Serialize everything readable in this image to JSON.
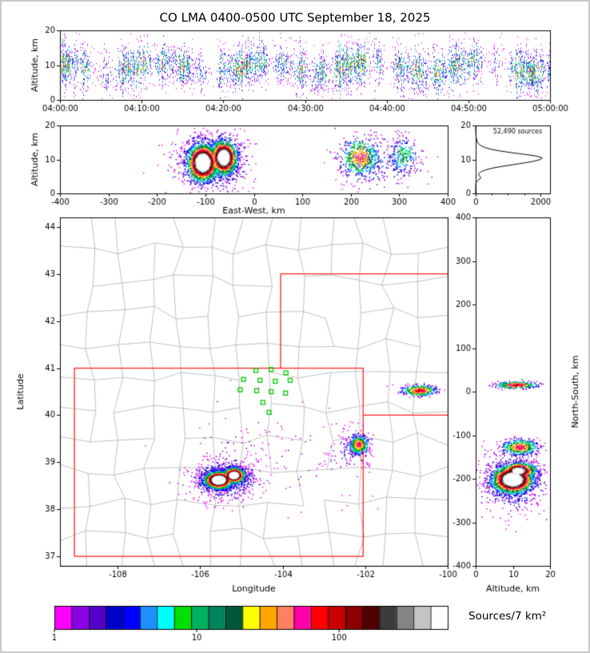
{
  "title": "CO LMA 0400-0500 UTC September 18, 2025",
  "colorbar": {
    "label": "Sources/7 km²",
    "tick_labels": [
      "1",
      "10",
      "100"
    ],
    "tick_positions": [
      0,
      0.362,
      0.724
    ],
    "colors": [
      "#FF00FF",
      "#8B00E6",
      "#5500C8",
      "#0000C8",
      "#0000FF",
      "#1E90FF",
      "#00FFFF",
      "#00E000",
      "#00B060",
      "#00845C",
      "#005838",
      "#FFFF00",
      "#FFA500",
      "#FF8060",
      "#FF00A8",
      "#FF0000",
      "#C80000",
      "#8B0000",
      "#500000",
      "#3C3C3C",
      "#848484",
      "#C4C4C4",
      "#FFFFFF"
    ]
  },
  "chart_data": [
    {
      "id": "time_height",
      "type": "scatter",
      "xlabel": "",
      "ylabel": "Altitude, km",
      "xlim": [
        0,
        3600
      ],
      "ylim": [
        0,
        20
      ],
      "xticks": [
        {
          "v": 0,
          "label": "04:00:00"
        },
        {
          "v": 600,
          "label": "04:10:00"
        },
        {
          "v": 1200,
          "label": "04:20:00"
        },
        {
          "v": 1800,
          "label": "04:30:00"
        },
        {
          "v": 2400,
          "label": "04:40:00"
        },
        {
          "v": 3000,
          "label": "04:50:00"
        },
        {
          "v": 3600,
          "label": "05:00:00"
        }
      ],
      "yticks": [
        {
          "v": 0,
          "label": "0"
        },
        {
          "v": 10,
          "label": "10"
        },
        {
          "v": 20,
          "label": "20"
        }
      ],
      "speckle": {
        "columns": 613,
        "alt_center": 9.5,
        "alt_var": 3.0,
        "max_per_col": 30,
        "seed": 11
      }
    },
    {
      "id": "ew_height",
      "type": "scatter",
      "xlabel": "East-West, km",
      "ylabel": "Altitude, km",
      "xlim": [
        -400,
        400
      ],
      "ylim": [
        0,
        20
      ],
      "xticks": [
        {
          "v": -400,
          "label": "-400"
        },
        {
          "v": -300,
          "label": "-300"
        },
        {
          "v": -200,
          "label": "-200"
        },
        {
          "v": -100,
          "label": "-100"
        },
        {
          "v": 0,
          "label": "0"
        },
        {
          "v": 100,
          "label": "100"
        },
        {
          "v": 200,
          "label": "200"
        },
        {
          "v": 300,
          "label": "300"
        },
        {
          "v": 400,
          "label": "400"
        }
      ],
      "yticks": [
        {
          "v": 0,
          "label": "0"
        },
        {
          "v": 10,
          "label": "10"
        },
        {
          "v": 20,
          "label": "20"
        }
      ],
      "clusters": [
        {
          "cx": -105,
          "cy": 9,
          "sx": 15,
          "sy": 2.6,
          "n": 2600,
          "core": 1.0
        },
        {
          "cx": -62,
          "cy": 10.5,
          "sx": 13,
          "sy": 2.4,
          "n": 2000,
          "core": 0.95
        },
        {
          "cx": -85,
          "cy": 9.5,
          "sx": 38,
          "sy": 4.5,
          "n": 800,
          "core": 0.22
        },
        {
          "cx": 220,
          "cy": 10.5,
          "sx": 20,
          "sy": 2.8,
          "n": 520,
          "core": 0.5
        },
        {
          "cx": 255,
          "cy": 9,
          "sx": 45,
          "sy": 4,
          "n": 260,
          "core": 0.15
        },
        {
          "cx": 308,
          "cy": 11,
          "sx": 16,
          "sy": 3,
          "n": 220,
          "core": 0.3
        }
      ],
      "seed": 22
    },
    {
      "id": "alt_histogram",
      "type": "line",
      "annotation": "52,490 sources",
      "xlabel": "",
      "ylabel": "",
      "xlim": [
        0,
        2300
      ],
      "ylim": [
        0,
        20
      ],
      "xticks": [
        {
          "v": 0,
          "label": "0"
        },
        {
          "v": 2000,
          "label": "2000"
        }
      ],
      "minor_xticks": [
        500,
        1000,
        1500
      ],
      "yticks": [
        {
          "v": 0,
          "label": "0"
        },
        {
          "v": 10,
          "label": "10"
        },
        {
          "v": 20,
          "label": "20"
        }
      ],
      "profile_alt_km": [
        0,
        2,
        3,
        3.5,
        4,
        4.5,
        5,
        5.5,
        6,
        6.5,
        7,
        7.5,
        8,
        8.5,
        9,
        9.5,
        10,
        10.5,
        11,
        11.5,
        12,
        12.5,
        13,
        13.5,
        14,
        14.5,
        15,
        16,
        17,
        18,
        19,
        20
      ],
      "profile_counts": [
        0,
        1,
        8,
        30,
        90,
        160,
        130,
        85,
        110,
        190,
        330,
        540,
        840,
        1180,
        1520,
        1810,
        2010,
        2060,
        1870,
        1520,
        1110,
        760,
        480,
        290,
        170,
        100,
        60,
        25,
        10,
        4,
        1,
        0
      ]
    },
    {
      "id": "map",
      "type": "scatter",
      "xlabel": "Longitude",
      "ylabel": "Latitude",
      "xlim": [
        -109.4,
        -100.0
      ],
      "ylim": [
        36.8,
        44.2
      ],
      "xticks": [
        {
          "v": -108,
          "label": "-108"
        },
        {
          "v": -106,
          "label": "-106"
        },
        {
          "v": -104,
          "label": "-104"
        },
        {
          "v": -102,
          "label": "-102"
        },
        {
          "v": -100,
          "label": "-100"
        }
      ],
      "yticks": [
        {
          "v": 37,
          "label": "37"
        },
        {
          "v": 38,
          "label": "38"
        },
        {
          "v": 39,
          "label": "39"
        },
        {
          "v": 40,
          "label": "40"
        },
        {
          "v": 41,
          "label": "41"
        },
        {
          "v": 42,
          "label": "42"
        },
        {
          "v": 43,
          "label": "43"
        },
        {
          "v": 44,
          "label": "44"
        }
      ],
      "county_color": "#B0B0B0",
      "county_grid": {
        "nx": 13,
        "ny": 11,
        "jitter": 0.42,
        "seed": 7
      },
      "state_border_color": "#FF1E1E",
      "state_segments": [
        [
          [
            -109.05,
            37
          ],
          [
            -102.05,
            37
          ],
          [
            -102.05,
            41
          ],
          [
            -109.05,
            41
          ],
          [
            -109.05,
            37
          ]
        ],
        [
          [
            -104.05,
            41
          ],
          [
            -104.05,
            43
          ]
        ],
        [
          [
            -104.05,
            43
          ],
          [
            -100.0,
            43
          ]
        ],
        [
          [
            -102.05,
            40
          ],
          [
            -100.0,
            40
          ]
        ]
      ],
      "stations": {
        "color": "#00CC00",
        "points": [
          [
            -104.65,
            40.95
          ],
          [
            -104.28,
            40.97
          ],
          [
            -103.92,
            40.9
          ],
          [
            -104.95,
            40.76
          ],
          [
            -104.55,
            40.74
          ],
          [
            -104.18,
            40.72
          ],
          [
            -103.82,
            40.74
          ],
          [
            -105.03,
            40.54
          ],
          [
            -104.63,
            40.52
          ],
          [
            -104.28,
            40.5
          ],
          [
            -103.93,
            40.47
          ],
          [
            -104.48,
            40.27
          ],
          [
            -104.33,
            40.06
          ]
        ]
      },
      "clusters": [
        {
          "cx": -105.55,
          "cy": 38.62,
          "sx": 0.16,
          "sy": 0.085,
          "n": 2600,
          "core": 1.0
        },
        {
          "cx": -105.18,
          "cy": 38.72,
          "sx": 0.12,
          "sy": 0.075,
          "n": 1700,
          "core": 0.95
        },
        {
          "cx": -105.4,
          "cy": 38.63,
          "sx": 0.4,
          "sy": 0.21,
          "n": 800,
          "core": 0.2
        },
        {
          "cx": -102.15,
          "cy": 39.37,
          "sx": 0.12,
          "sy": 0.1,
          "n": 460,
          "core": 0.5
        },
        {
          "cx": -102.35,
          "cy": 39.28,
          "sx": 0.32,
          "sy": 0.22,
          "n": 130,
          "core": 0.1
        },
        {
          "cx": -100.68,
          "cy": 40.52,
          "sx": 0.2,
          "sy": 0.055,
          "n": 420,
          "core": 0.55
        },
        {
          "cx": -104.9,
          "cy": 39.4,
          "sx": 0.7,
          "sy": 0.45,
          "n": 70,
          "core": 0.05
        },
        {
          "cx": -103.4,
          "cy": 38.9,
          "sx": 0.9,
          "sy": 0.5,
          "n": 50,
          "core": 0.05
        }
      ],
      "seed": 33
    },
    {
      "id": "ns_height",
      "type": "scatter",
      "xlabel": "Altitude, km",
      "ylabel": "North-South, km",
      "xlim": [
        0,
        20
      ],
      "ylim": [
        -400,
        400
      ],
      "xticks": [
        {
          "v": 0,
          "label": "0"
        },
        {
          "v": 10,
          "label": "10"
        },
        {
          "v": 20,
          "label": "20"
        }
      ],
      "yticks": [
        {
          "v": -400,
          "label": "-400"
        },
        {
          "v": -300,
          "label": "-300"
        },
        {
          "v": -200,
          "label": "-200"
        },
        {
          "v": -100,
          "label": "-100"
        },
        {
          "v": 0,
          "label": "0"
        },
        {
          "v": 100,
          "label": "100"
        },
        {
          "v": 200,
          "label": "200"
        },
        {
          "v": 300,
          "label": "300"
        },
        {
          "v": 400,
          "label": "400"
        }
      ],
      "clusters": [
        {
          "cx": 10,
          "cy": -202,
          "sx": 2.6,
          "sy": 15,
          "n": 2600,
          "core": 1.0
        },
        {
          "cx": 11.5,
          "cy": -182,
          "sx": 2.2,
          "sy": 9,
          "n": 900,
          "core": 0.85
        },
        {
          "cx": 10,
          "cy": -205,
          "sx": 4.5,
          "sy": 36,
          "n": 700,
          "core": 0.18
        },
        {
          "cx": 12,
          "cy": -128,
          "sx": 2.4,
          "sy": 9,
          "n": 480,
          "core": 0.5
        },
        {
          "cx": 11,
          "cy": 15,
          "sx": 2.8,
          "sy": 4,
          "n": 320,
          "core": 0.55
        }
      ],
      "seed": 44
    }
  ]
}
